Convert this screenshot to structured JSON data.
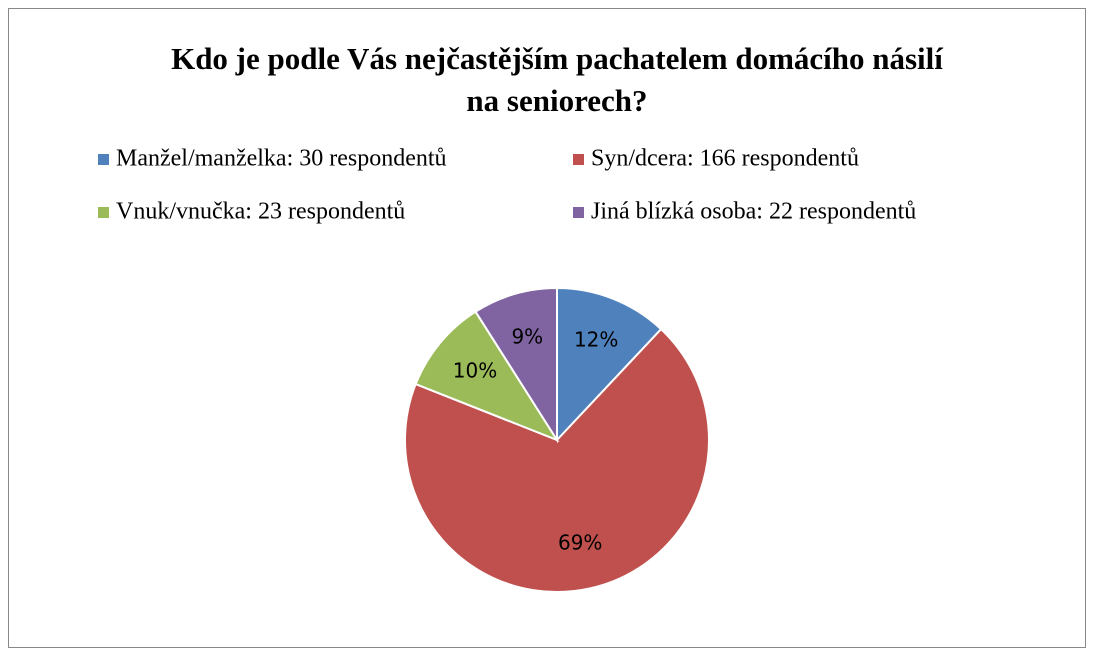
{
  "chart_data": {
    "type": "pie",
    "title": "Kdo je podle Vás nejčastějším pachatelem domácího násilí na seniorech?",
    "categories": [
      "Manžel/manželka: 30 respondentů",
      "Syn/dcera: 166 respondentů",
      "Vnuk/vnučka: 23 respondentů",
      "Jiná blízká osoba: 22 respondentů"
    ],
    "values": [
      12,
      69,
      10,
      9
    ],
    "value_labels": [
      "12%",
      "69%",
      "10%",
      "9%"
    ],
    "colors": [
      "#4f81bd",
      "#c0504d",
      "#9bbb59",
      "#8064a2"
    ],
    "legend": "top"
  }
}
